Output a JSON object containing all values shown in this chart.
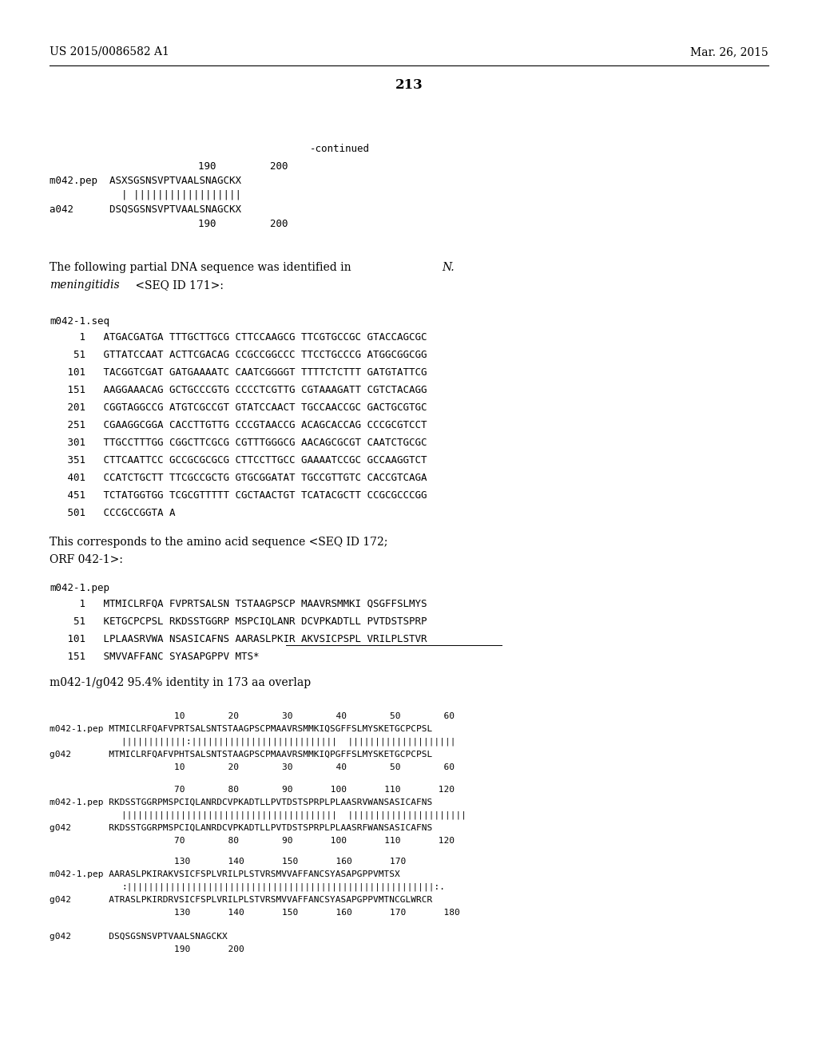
{
  "page_left": "US 2015/0086582 A1",
  "page_right": "Mar. 26, 2015",
  "page_number": "213",
  "background_color": "#ffffff",
  "text_color": "#000000",
  "fig_width": 10.24,
  "fig_height": 13.2,
  "dpi": 100
}
